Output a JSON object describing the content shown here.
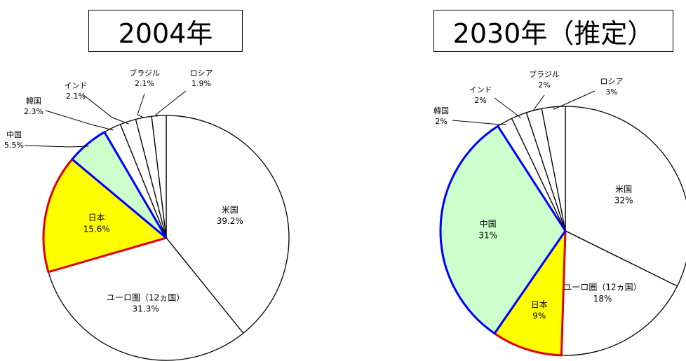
{
  "chart_data": [
    {
      "type": "pie",
      "title": "2004年",
      "slices": [
        {
          "label": "米国",
          "value_label": "39.2%",
          "value": 39.2,
          "color": "#ffffff",
          "stroke": "#000000"
        },
        {
          "label": "ユーロ圏（12ヵ国）",
          "value_label": "31.3%",
          "value": 31.3,
          "color": "#ffffff",
          "stroke": "#000000"
        },
        {
          "label": "日本",
          "value_label": "15.6%",
          "value": 15.6,
          "color": "#ffff00",
          "stroke": "#e00000"
        },
        {
          "label": "中国",
          "value_label": "5.5%",
          "value": 5.5,
          "color": "#ccffcc",
          "stroke": "#0000ff"
        },
        {
          "label": "韓国",
          "value_label": "2.3%",
          "value": 2.3,
          "color": "#ffffff",
          "stroke": "#000000"
        },
        {
          "label": "インド",
          "value_label": "2.1%",
          "value": 2.1,
          "color": "#ffffff",
          "stroke": "#000000"
        },
        {
          "label": "ブラジル",
          "value_label": "2.1%",
          "value": 2.1,
          "color": "#ffffff",
          "stroke": "#000000"
        },
        {
          "label": "ロシア",
          "value_label": "1.9%",
          "value": 1.9,
          "color": "#ffffff",
          "stroke": "#000000"
        }
      ]
    },
    {
      "type": "pie",
      "title": "2030年（推定）",
      "slices": [
        {
          "label": "米国",
          "value_label": "32%",
          "value": 32,
          "color": "#ffffff",
          "stroke": "#000000"
        },
        {
          "label": "ユーロ圏（12ヵ国）",
          "value_label": "18%",
          "value": 18,
          "color": "#ffffff",
          "stroke": "#000000"
        },
        {
          "label": "日本",
          "value_label": "9%",
          "value": 9,
          "color": "#ffff00",
          "stroke": "#e00000"
        },
        {
          "label": "中国",
          "value_label": "31%",
          "value": 31,
          "color": "#ccffcc",
          "stroke": "#0000ff"
        },
        {
          "label": "韓国",
          "value_label": "2%",
          "value": 2,
          "color": "#ffffff",
          "stroke": "#000000"
        },
        {
          "label": "インド",
          "value_label": "2%",
          "value": 2,
          "color": "#ffffff",
          "stroke": "#000000"
        },
        {
          "label": "ブラジル",
          "value_label": "2%",
          "value": 2,
          "color": "#ffffff",
          "stroke": "#000000"
        },
        {
          "label": "ロシア",
          "value_label": "3%",
          "value": 3,
          "color": "#ffffff",
          "stroke": "#000000"
        }
      ]
    }
  ]
}
